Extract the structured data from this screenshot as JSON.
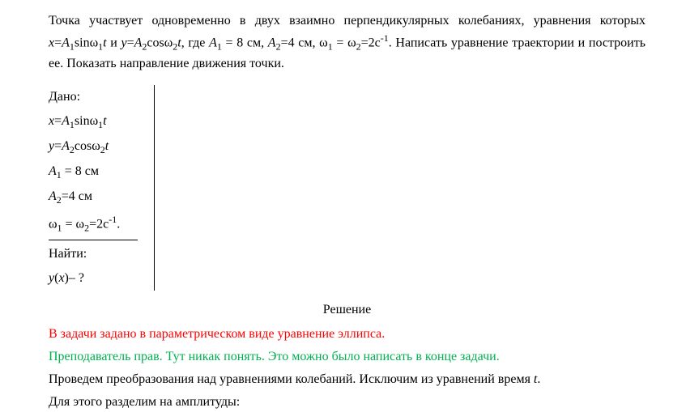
{
  "problem": {
    "line1_pre": "Точка участвует одновременно в двух взаимно перпендикулярных колебаниях, уравнения которых ",
    "eq_x_lhs": "x",
    "eq_x_eq": "=",
    "eq_x_A": "A",
    "eq_x_sub1": "1",
    "eq_x_sin": "sinω",
    "eq_x_sub1b": "1",
    "eq_x_t": "t",
    "and_word": " и ",
    "eq_y_lhs": "y",
    "eq_y_eq": "=",
    "eq_y_A": "A",
    "eq_y_sub2": "2",
    "eq_y_cos": "cosω",
    "eq_y_sub2b": "2",
    "eq_y_t": "t",
    "where": ", где ",
    "A1_lbl": "A",
    "A1_sub": "1",
    "A1_val": " = 8 см, ",
    "A2_lbl": "A",
    "A2_sub": "2",
    "A2_val": "=4 см, ω",
    "w_sub1": "1",
    "w_mid": " = ω",
    "w_sub2": "2",
    "w_val": "=2с",
    "w_pow": "-1",
    "tail": ". Написать уравнение траектории и построить ее. Показать направление движения точки."
  },
  "given": {
    "title": "Дано:",
    "l1_x": "x",
    "l1_eq": "=",
    "l1_A": "A",
    "l1_s1": "1",
    "l1_sin": "sinω",
    "l1_s1b": "1",
    "l1_t": "t",
    "l2_y": "y",
    "l2_eq": "=",
    "l2_A": "A",
    "l2_s2": "2",
    "l2_cos": "cosω",
    "l2_s2b": "2",
    "l2_t": "t",
    "l3_A": "A",
    "l3_s1": "1",
    "l3_val": " = 8 см",
    "l4_A": "A",
    "l4_s2": "2",
    "l4_val": "=4 см",
    "l5_w": "ω",
    "l5_s1": "1",
    "l5_mid": " = ω",
    "l5_s2": "2",
    "l5_val": "=2с",
    "l5_pow": "-1",
    "l5_dot": ".",
    "find": "Найти:",
    "find_y": "y",
    "find_open": "(",
    "find_x": "x",
    "find_close": ")– ?"
  },
  "solution": {
    "title": "Решение",
    "line_red": "В задачи задано в параметрическом виде уравнение эллипса.",
    "line_green": "Преподаватель прав. Тут никак понять. Это можно было написать в конце задачи.",
    "line3_a": "Проведем преобразования над уравнениями колебаний. Исключим из уравнений время ",
    "line3_t": "t",
    "line3_dot": ".",
    "line4": "Для этого разделим на амплитуды:"
  },
  "colors": {
    "red": "#ff0000",
    "green": "#00b050",
    "text": "#000000",
    "bg": "#ffffff"
  }
}
